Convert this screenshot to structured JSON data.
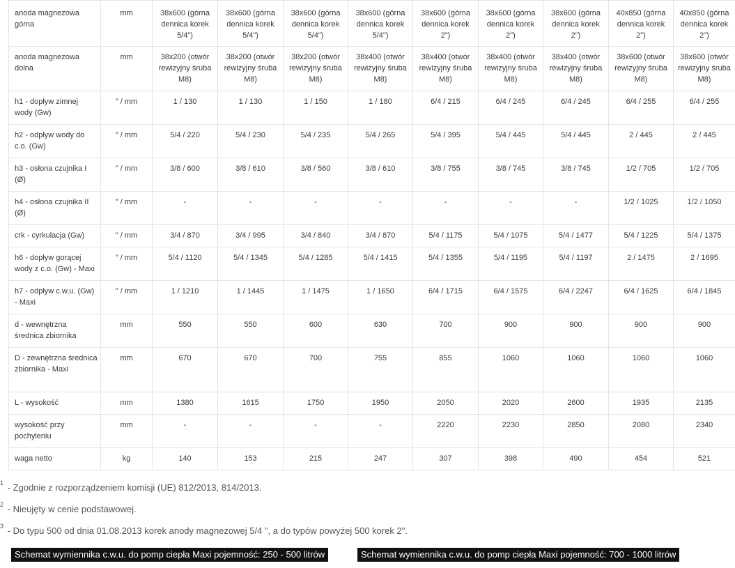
{
  "table": {
    "rows": [
      {
        "label": "anoda magnezowa górna",
        "unit": "mm",
        "values": [
          "38x600 (górna dennica korek 5/4\")",
          "38x600 (górna dennica korek 5/4\")",
          "38x600 (górna dennica korek 5/4\")",
          "38x600 (górna dennica korek 5/4\")",
          "38x600 (górna dennica korek 2\")",
          "38x600 (górna dennica korek 2\")",
          "38x600 (górna dennica korek 2\")",
          "40x850 (górna dennica korek 2\")",
          "40x850 (górna dennica korek 2\")"
        ]
      },
      {
        "label": "anoda magnezowa dolna",
        "unit": "mm",
        "values": [
          "38x200 (otwór rewizyjny śruba M8)",
          "38x200 (otwór rewizyjny śruba M8)",
          "38x200 (otwór rewizyjny śruba M8)",
          "38x400 (otwór rewizyjny śruba M8)",
          "38x400 (otwór rewizyjny śruba M8)",
          "38x400 (otwór rewizyjny śruba M8)",
          "38x400 (otwór rewizyjny śruba M8)",
          "38x600 (otwór rewizyjny śruba M8)",
          "38x600 (otwór rewizyjny śruba M8)"
        ]
      },
      {
        "label": "h1 - dopływ zimnej wody (Gw)",
        "unit": "\" / mm",
        "values": [
          "1 / 130",
          "1 / 130",
          "1 / 150",
          "1 / 180",
          "6/4 / 215",
          "6/4 / 245",
          "6/4 / 245",
          "6/4 / 255",
          "6/4 / 255"
        ]
      },
      {
        "label": "h2 - odpływ wody do c.o. (Gw)",
        "unit": "\" / mm",
        "values": [
          "5/4 / 220",
          "5/4 / 230",
          "5/4 / 235",
          "5/4 / 265",
          "5/4 / 395",
          "5/4 / 445",
          "5/4 / 445",
          "2 / 445",
          "2 / 445"
        ]
      },
      {
        "label": "h3 - osłona czujnika I (Ø)",
        "unit": "\" / mm",
        "values": [
          "3/8 / 600",
          "3/8 / 610",
          "3/8 / 560",
          "3/8 / 610",
          "3/8 / 755",
          "3/8 / 745",
          "3/8 / 745",
          "1/2 / 705",
          "1/2 / 705"
        ]
      },
      {
        "label": "h4 - osłona czujnika II (Ø)",
        "unit": "\" / mm",
        "values": [
          "-",
          "-",
          "-",
          "-",
          "-",
          "-",
          "-",
          "1/2 / 1025",
          "1/2 / 1050"
        ]
      },
      {
        "label": "crk - cyrkulacja (Gw)",
        "unit": "\" / mm",
        "values": [
          "3/4 / 870",
          "3/4 / 995",
          "3/4 / 840",
          "3/4 / 870",
          "5/4 / 1175",
          "5/4 / 1075",
          "5/4 / 1477",
          "5/4 / 1225",
          "5/4 / 1375"
        ]
      },
      {
        "label": "h6 - dopływ gorącej wody z c.o. (Gw) - Maxi",
        "unit": "\" / mm",
        "values": [
          "5/4 / 1120",
          "5/4 / 1345",
          "5/4 / 1285",
          "5/4 / 1415",
          "5/4 / 1355",
          "5/4 / 1195",
          "5/4 / 1197",
          "2 / 1475",
          "2 / 1695"
        ]
      },
      {
        "label": "h7 - odpływ c.w.u. (Gw) - Maxi",
        "unit": "\" / mm",
        "values": [
          "1 / 1210",
          "1 / 1445",
          "1 / 1475",
          "1 / 1650",
          "6/4 / 1715",
          "6/4 / 1575",
          "6/4 / 2247",
          "6/4 / 1625",
          "6/4 / 1845"
        ]
      },
      {
        "label": "d - wewnętrzna średnica zbiornika",
        "unit": "mm",
        "values": [
          "550",
          "550",
          "600",
          "630",
          "700",
          "900",
          "900",
          "900",
          "900"
        ]
      },
      {
        "label": "D - zewnętrzna średnica zbiornika - Maxi",
        "unit": "mm",
        "values": [
          "670",
          "670",
          "700",
          "755",
          "855",
          "1060",
          "1060",
          "1060",
          "1060"
        ]
      },
      {
        "label": "L - wysokość",
        "unit": "mm",
        "values": [
          "1380",
          "1615",
          "1750",
          "1950",
          "2050",
          "2020",
          "2600",
          "1935",
          "2135"
        ]
      },
      {
        "label": "wysokość przy pochyleniu",
        "unit": "mm",
        "values": [
          "-",
          "-",
          "-",
          "-",
          "2220",
          "2230",
          "2850",
          "2080",
          "2340"
        ]
      },
      {
        "label": "waga netto",
        "unit": "kg",
        "values": [
          "140",
          "153",
          "215",
          "247",
          "307",
          "398",
          "490",
          "454",
          "521"
        ]
      }
    ]
  },
  "footnotes": [
    {
      "marker": "1",
      "text": " - Zgodnie z rozporządzeniem komisji (UE) 812/2013, 814/2013."
    },
    {
      "marker": "2",
      "text": " - Nieujęty w cenie podstawowej."
    },
    {
      "marker": "3",
      "text": " - Do typu 500 od dnia 01.08.2013 korek anody magnezowej 5/4 \", a do typów powyżej 500 korek 2\"."
    }
  ],
  "links": [
    {
      "label": "Schemat wymiennika c.w.u. do pomp ciepła Maxi pojemność: 250 - 500 litrów"
    },
    {
      "label": "Schemat wymiennika c.w.u. do pomp ciepła Maxi pojemność: 700 - 1000 litrów"
    }
  ]
}
